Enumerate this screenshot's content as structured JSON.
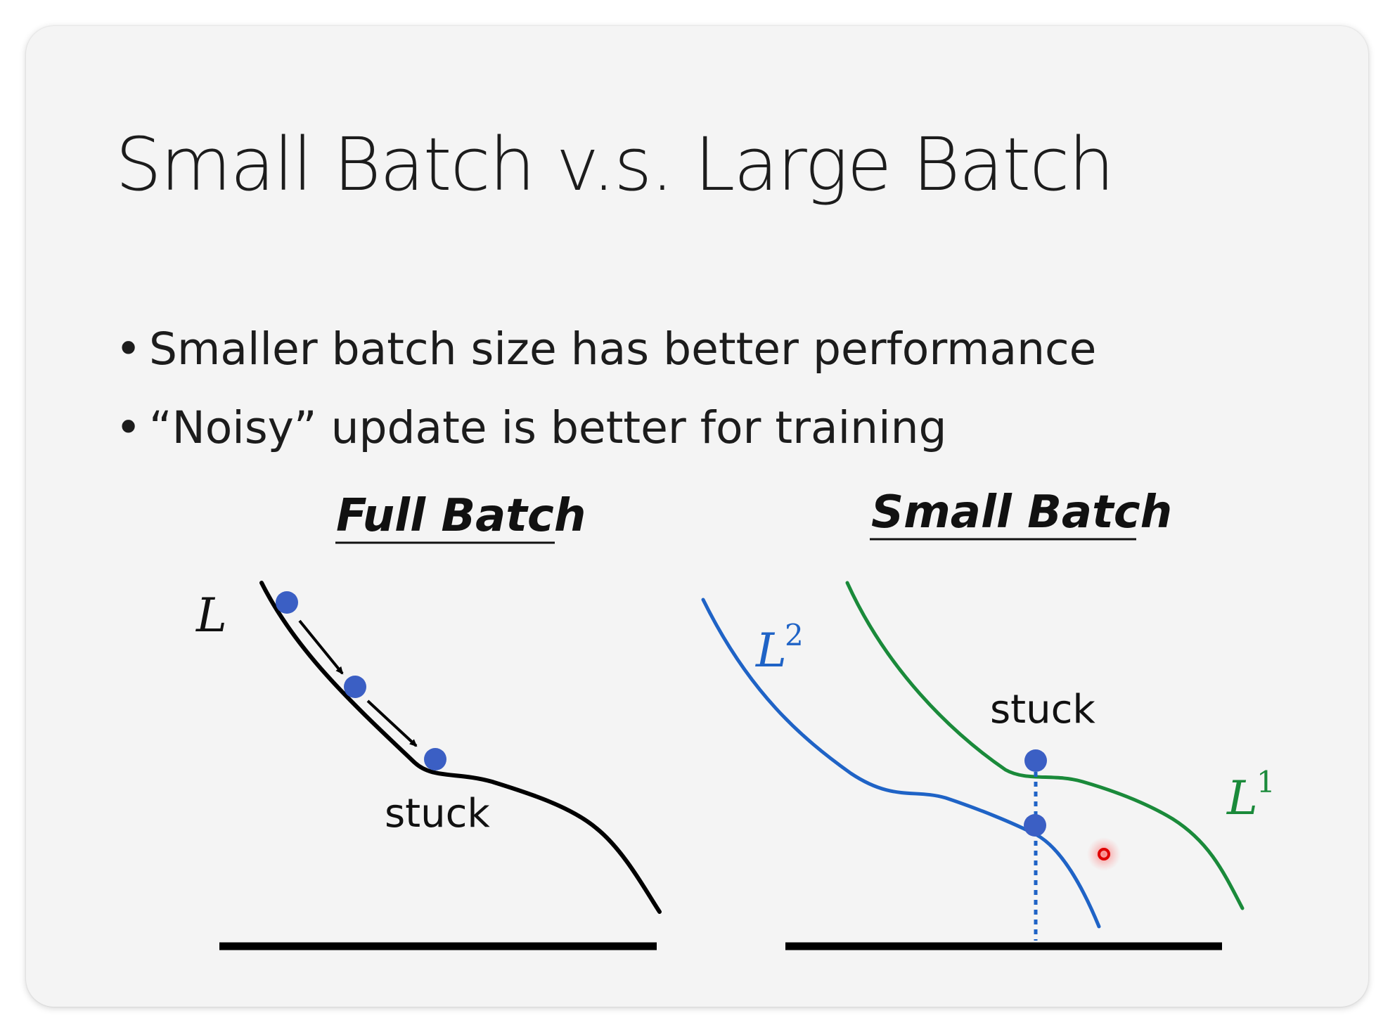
{
  "slide": {
    "title": "Small Batch v.s. Large Batch",
    "bullets": [
      "Smaller batch size has better performance",
      "“Noisy” update is better for training"
    ]
  },
  "figures": {
    "full_batch": {
      "heading": "Full Batch",
      "axis_label": "L",
      "annotation": "stuck",
      "curve_color": "#000000",
      "dot_color": "#3b5fc4"
    },
    "small_batch": {
      "heading": "Small Batch",
      "annotation": "stuck",
      "curve_1": {
        "label_base": "L",
        "label_sup": "1",
        "color": "#1a8a3a"
      },
      "curve_2": {
        "label_base": "L",
        "label_sup": "2",
        "color": "#1f63c6"
      },
      "dot_color": "#3b5fc4"
    },
    "cursor_indicator_color": "#e00000"
  }
}
